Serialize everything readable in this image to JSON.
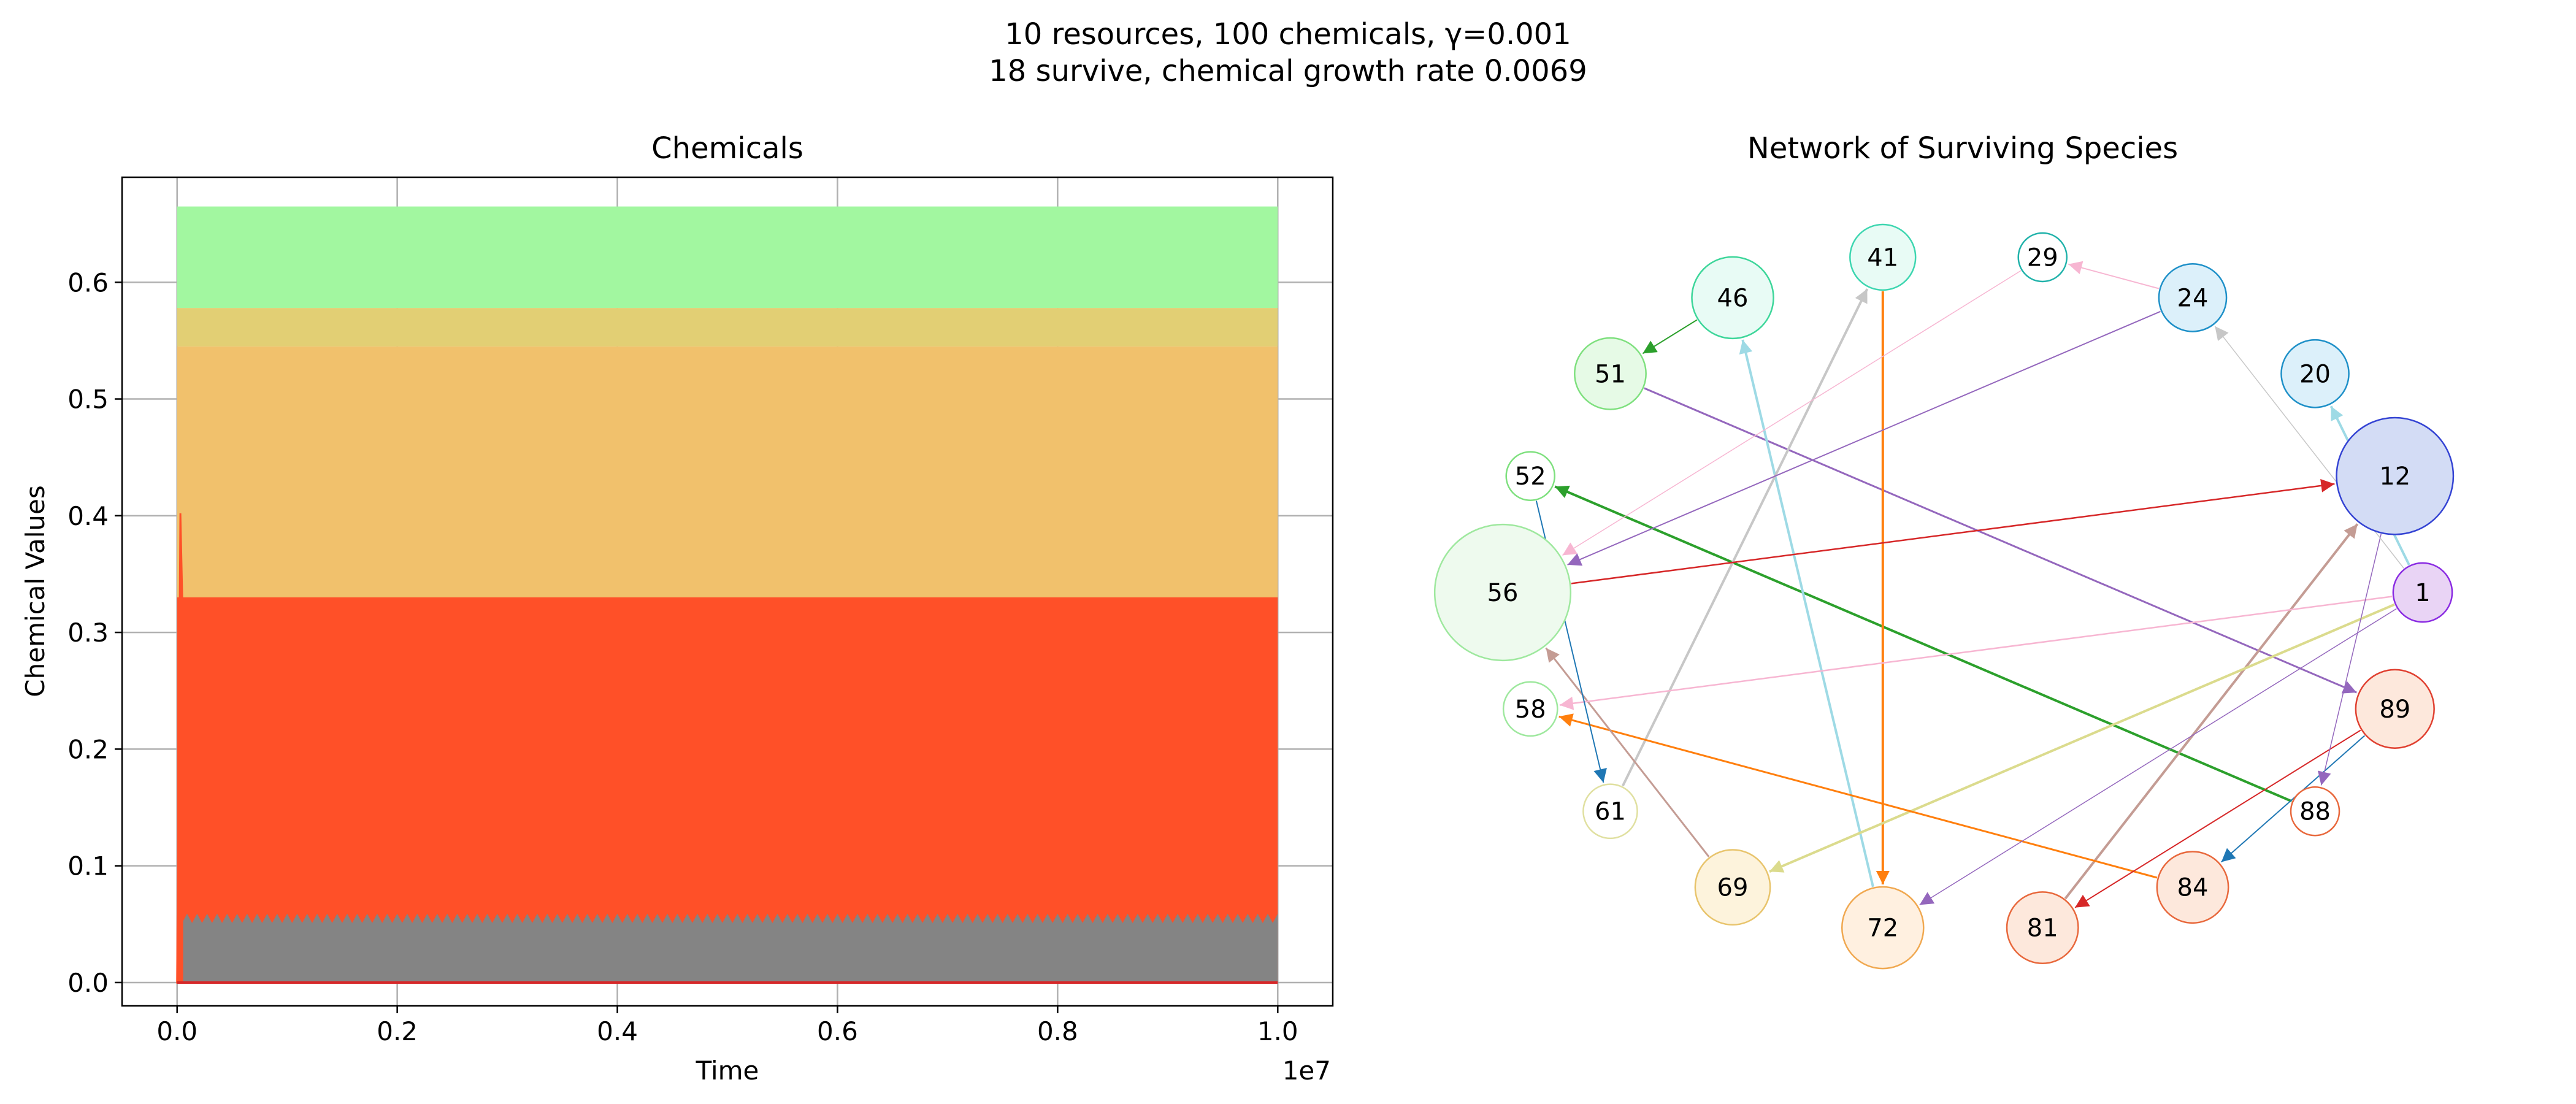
{
  "figure": {
    "title_line1": "10 resources, 100 chemicals, γ=0.001",
    "title_line2": "18 survive, chemical growth rate 0.0069"
  },
  "chart_data": [
    {
      "type": "area",
      "title": "Chemicals",
      "xlabel": "Time",
      "ylabel": "Chemical Values",
      "x_offset_label": "1e7",
      "xlim": [
        -0.05,
        1.05
      ],
      "ylim": [
        -0.02,
        0.69
      ],
      "x_ticks": [
        0.0,
        0.2,
        0.4,
        0.6,
        0.8,
        1.0
      ],
      "x_tick_labels": [
        "0.0",
        "0.2",
        "0.4",
        "0.6",
        "0.8",
        "1.0"
      ],
      "y_ticks": [
        0.0,
        0.1,
        0.2,
        0.3,
        0.4,
        0.5,
        0.6
      ],
      "y_tick_labels": [
        "0.0",
        "0.1",
        "0.2",
        "0.3",
        "0.4",
        "0.5",
        "0.6"
      ],
      "grid": true,
      "x_range": [
        0.0,
        1.0
      ],
      "bands": [
        {
          "color": "#a2f7a0",
          "lower": 0.578,
          "upper": 0.665
        },
        {
          "color": "#e2cf74",
          "lower": 0.545,
          "upper": 0.578
        },
        {
          "color": "#f1c16c",
          "lower": 0.33,
          "upper": 0.545
        },
        {
          "color": "#ff5028",
          "lower": 0.0,
          "upper": 0.33
        },
        {
          "color": "#848484",
          "lower": 0.0,
          "upper": 0.055
        }
      ],
      "spike": {
        "x": 0.003,
        "value": 0.402,
        "color": "#ff5028"
      },
      "baseline_color": "#d62728"
    },
    {
      "type": "network",
      "title": "Network of Surviving Species",
      "nodes": [
        {
          "id": "1",
          "size": 1,
          "fill": "#e9d4f5",
          "edge": "#8a2be2"
        },
        {
          "id": "12",
          "size": 5,
          "fill": "#d3dcf5",
          "edge": "#3443d3"
        },
        {
          "id": "20",
          "size": 1.4,
          "fill": "#dcf0fa",
          "edge": "#1e90c8"
        },
        {
          "id": "24",
          "size": 1.4,
          "fill": "#dcf0fa",
          "edge": "#1e90c8"
        },
        {
          "id": "29",
          "size": 0.6,
          "fill": "#ffffff",
          "edge": "#20b2aa"
        },
        {
          "id": "41",
          "size": 1.3,
          "fill": "#e8fbf5",
          "edge": "#3dd6b0"
        },
        {
          "id": "46",
          "size": 2.2,
          "fill": "#e8fbf5",
          "edge": "#3dd69a"
        },
        {
          "id": "51",
          "size": 1.6,
          "fill": "#e6fae6",
          "edge": "#7ee07e"
        },
        {
          "id": "52",
          "size": 0.6,
          "fill": "#ffffff",
          "edge": "#7ee07e"
        },
        {
          "id": "56",
          "size": 7,
          "fill": "#eefaee",
          "edge": "#9ee89e"
        },
        {
          "id": "58",
          "size": 0.8,
          "fill": "#ffffff",
          "edge": "#9ee89e"
        },
        {
          "id": "61",
          "size": 0.8,
          "fill": "#ffffff",
          "edge": "#e0e0a0"
        },
        {
          "id": "69",
          "size": 1.8,
          "fill": "#fdf3dc",
          "edge": "#e8c46c"
        },
        {
          "id": "72",
          "size": 2.2,
          "fill": "#fff0e0",
          "edge": "#f0a850"
        },
        {
          "id": "81",
          "size": 1.6,
          "fill": "#fde8dc",
          "edge": "#e8683c"
        },
        {
          "id": "84",
          "size": 1.6,
          "fill": "#fde8dc",
          "edge": "#e8683c"
        },
        {
          "id": "88",
          "size": 0.6,
          "fill": "#ffffff",
          "edge": "#e8683c"
        },
        {
          "id": "89",
          "size": 2,
          "fill": "#fde8dc",
          "edge": "#e04030"
        }
      ],
      "edges": [
        {
          "from": "51",
          "to": "89",
          "color": "#9467bd",
          "width": 3
        },
        {
          "from": "88",
          "to": "52",
          "color": "#2ca02c",
          "width": 4
        },
        {
          "from": "41",
          "to": "72",
          "color": "#ff7f0e",
          "width": 4
        },
        {
          "from": "72",
          "to": "46",
          "color": "#9edae5",
          "width": 4
        },
        {
          "from": "61",
          "to": "41",
          "color": "#c7c7c7",
          "width": 4
        },
        {
          "from": "81",
          "to": "12",
          "color": "#c49c94",
          "width": 4
        },
        {
          "from": "1",
          "to": "69",
          "color": "#dbdb8d",
          "width": 4
        },
        {
          "from": "1",
          "to": "20",
          "color": "#9edae5",
          "width": 4
        },
        {
          "from": "56",
          "to": "12",
          "color": "#d62728",
          "width": 2.5
        },
        {
          "from": "84",
          "to": "58",
          "color": "#ff7f0e",
          "width": 3
        },
        {
          "from": "69",
          "to": "56",
          "color": "#c49c94",
          "width": 3
        },
        {
          "from": "1",
          "to": "58",
          "color": "#f7b6d2",
          "width": 2.5
        },
        {
          "from": "24",
          "to": "29",
          "color": "#f7b6d2",
          "width": 2
        },
        {
          "from": "29",
          "to": "56",
          "color": "#f7b6d2",
          "width": 1.5
        },
        {
          "from": "24",
          "to": "56",
          "color": "#9467bd",
          "width": 2
        },
        {
          "from": "46",
          "to": "51",
          "color": "#2ca02c",
          "width": 2
        },
        {
          "from": "52",
          "to": "61",
          "color": "#1f77b4",
          "width": 2
        },
        {
          "from": "89",
          "to": "84",
          "color": "#1f77b4",
          "width": 2
        },
        {
          "from": "89",
          "to": "81",
          "color": "#d62728",
          "width": 2
        },
        {
          "from": "1",
          "to": "72",
          "color": "#9467bd",
          "width": 1.5
        },
        {
          "from": "12",
          "to": "88",
          "color": "#9467bd",
          "width": 1.5
        },
        {
          "from": "1",
          "to": "24",
          "color": "#c7c7c7",
          "width": 1.5
        }
      ]
    }
  ]
}
